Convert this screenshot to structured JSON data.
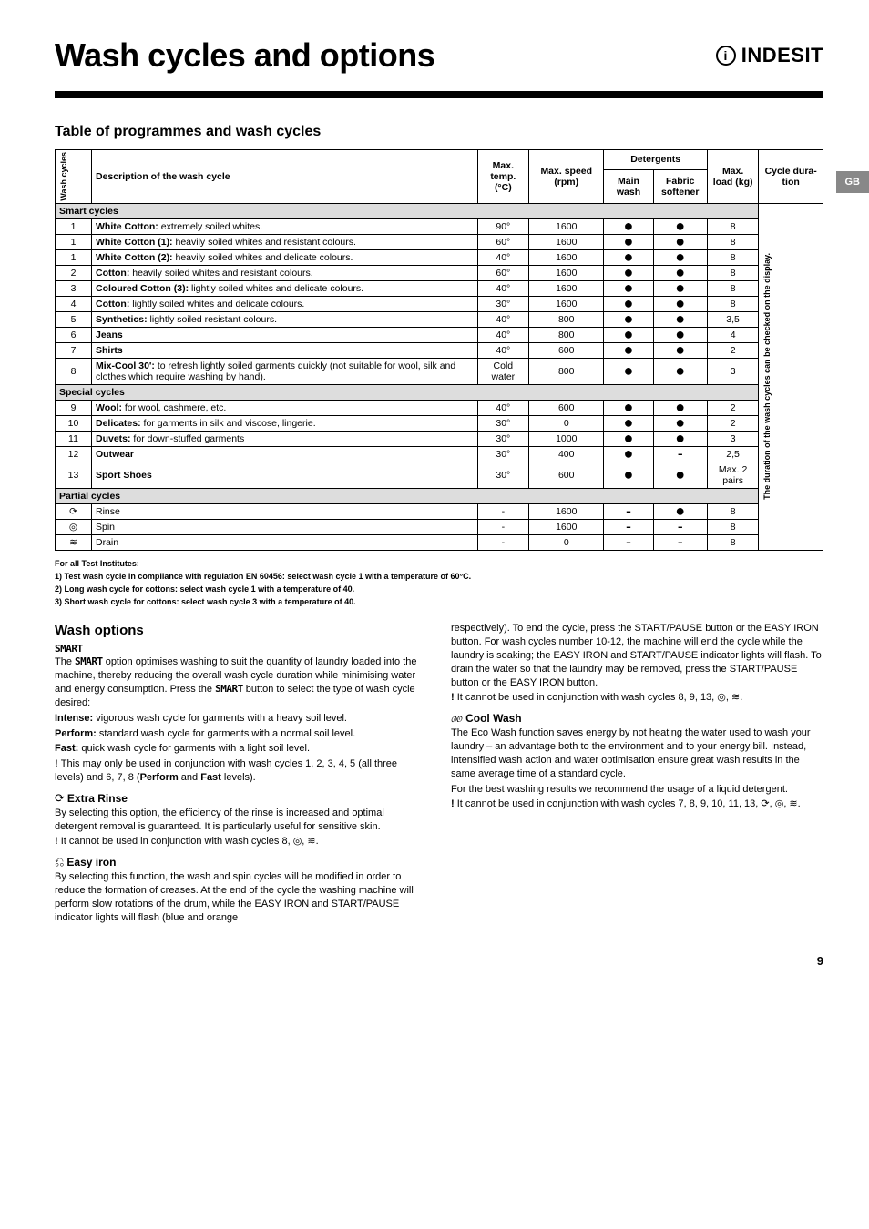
{
  "header": {
    "title": "Wash cycles and options",
    "logo": "INDESIT",
    "gb_tab": "GB"
  },
  "table": {
    "heading": "Table of programmes and wash cycles",
    "cols": {
      "cycle": "Wash cycles",
      "desc": "Description of the wash cycle",
      "temp": "Max. temp. (°C)",
      "speed": "Max. speed (rpm)",
      "det": "Detergents",
      "det_main": "Main wash",
      "det_soft": "Fabric softener",
      "load": "Max. load (kg)",
      "dura": "Cycle dura-tion",
      "dura_note": "The duration of the wash cycles can be checked on the display."
    },
    "sections": {
      "smart": "Smart cycles",
      "special": "Special cycles",
      "partial": "Partial cycles"
    },
    "rows": [
      {
        "n": "1",
        "d": "<b>White Cotton:</b> extremely soiled whites.",
        "t": "90°",
        "s": "1600",
        "m": "●",
        "f": "●",
        "l": "8"
      },
      {
        "n": "1",
        "d": "<b>White Cotton (1):</b> heavily soiled whites and resistant colours.",
        "t": "60°",
        "s": "1600",
        "m": "●",
        "f": "●",
        "l": "8"
      },
      {
        "n": "1",
        "d": "<b>White Cotton (2):</b> heavily soiled whites and delicate colours.",
        "t": "40°",
        "s": "1600",
        "m": "●",
        "f": "●",
        "l": "8"
      },
      {
        "n": "2",
        "d": "<b>Cotton:</b> heavily soiled whites and resistant colours.",
        "t": "60°",
        "s": "1600",
        "m": "●",
        "f": "●",
        "l": "8"
      },
      {
        "n": "3",
        "d": "<b>Coloured Cotton (3):</b> lightly soiled whites and delicate colours.",
        "t": "40°",
        "s": "1600",
        "m": "●",
        "f": "●",
        "l": "8"
      },
      {
        "n": "4",
        "d": "<b>Cotton:</b> lightly soiled whites and delicate colours.",
        "t": "30°",
        "s": "1600",
        "m": "●",
        "f": "●",
        "l": "8"
      },
      {
        "n": "5",
        "d": "<b>Synthetics:</b> lightly soiled resistant colours.",
        "t": "40°",
        "s": "800",
        "m": "●",
        "f": "●",
        "l": "3,5"
      },
      {
        "n": "6",
        "d": "<b>Jeans</b>",
        "t": "40°",
        "s": "800",
        "m": "●",
        "f": "●",
        "l": "4"
      },
      {
        "n": "7",
        "d": "<b>Shirts</b>",
        "t": "40°",
        "s": "600",
        "m": "●",
        "f": "●",
        "l": "2"
      },
      {
        "n": "8",
        "d": "<b>Mix-Cool 30':</b> to refresh lightly soiled garments quickly (not suitable for wool, silk and clothes which require washing by hand).",
        "t": "Cold water",
        "s": "800",
        "m": "●",
        "f": "●",
        "l": "3"
      }
    ],
    "rows_special": [
      {
        "n": "9",
        "d": "<b>Wool:</b> for wool, cashmere, etc.",
        "t": "40°",
        "s": "600",
        "m": "●",
        "f": "●",
        "l": "2"
      },
      {
        "n": "10",
        "d": "<b>Delicates:</b> for garments in silk and viscose, lingerie.",
        "t": "30°",
        "s": "0",
        "m": "●",
        "f": "●",
        "l": "2"
      },
      {
        "n": "11",
        "d": "<b>Duvets:</b> for down-stuffed garments",
        "t": "30°",
        "s": "1000",
        "m": "●",
        "f": "●",
        "l": "3"
      },
      {
        "n": "12",
        "d": "<b>Outwear</b>",
        "t": "30°",
        "s": "400",
        "m": "●",
        "f": "-",
        "l": "2,5"
      },
      {
        "n": "13",
        "d": "<b>Sport Shoes</b>",
        "t": "30°",
        "s": "600",
        "m": "●",
        "f": "●",
        "l": "Max. 2 pairs"
      }
    ],
    "rows_partial": [
      {
        "n": "⟳",
        "d": "Rinse",
        "t": "-",
        "s": "1600",
        "m": "-",
        "f": "●",
        "l": "8"
      },
      {
        "n": "◎",
        "d": "Spin",
        "t": "-",
        "s": "1600",
        "m": "-",
        "f": "-",
        "l": "8"
      },
      {
        "n": "≋",
        "d": "Drain",
        "t": "-",
        "s": "0",
        "m": "-",
        "f": "-",
        "l": "8"
      }
    ]
  },
  "footnotes": {
    "l1": "For all Test Institutes:",
    "l2": "1) Test wash cycle in compliance with regulation EN 60456: select wash cycle 1 with a temperature of 60°C.",
    "l3": "2) Long wash cycle for cottons: select wash cycle 1 with a temperature of 40.",
    "l4": "3) Short wash cycle for cottons: select wash cycle 3 with a temperature of 40."
  },
  "left": {
    "heading": "Wash options",
    "smart_label": "SMART",
    "smart_p1": "The ",
    "smart_p2": " option optimises washing to suit the quantity of laundry loaded into the machine, thereby reducing the overall wash cycle duration while minimising water and energy consumption. Press the ",
    "smart_p3": " button to select the type of wash cycle desired:",
    "intense_l": "Intense:",
    "intense_t": " vigorous wash cycle for garments with a heavy soil level.",
    "perform_l": "Perform:",
    "perform_t": " standard wash cycle for garments with a normal soil level.",
    "fast_l": "Fast:",
    "fast_t": " quick wash cycle for garments with a light soil level.",
    "fast_note": "This may only be used in conjunction with wash cycles 1, 2, 3, 4, 5 (all three levels) and 6, 7, 8 (Perform and Fast levels).",
    "extra_h": "Extra Rinse",
    "extra_p": "By selecting this option, the efficiency of the rinse is increased and optimal detergent removal is guaranteed. It is particularly useful for sensitive skin.",
    "extra_note": "It cannot be used in conjunction with wash cycles 8, ◎, ≋.",
    "easy_h": "Easy iron",
    "easy_p": "By selecting this function, the wash and spin cycles will be modified in order to reduce the formation of creases. At the end of the cycle the washing machine will perform slow rotations of the drum, while the EASY IRON and START/PAUSE indicator lights will flash (blue and orange"
  },
  "right": {
    "cont": "respectively). To end the cycle, press the START/PAUSE button or the EASY IRON button. For wash cycles number 10-12, the machine will end the cycle while the laundry is soaking; the EASY IRON and START/PAUSE indicator lights will flash. To drain the water so that the laundry may be removed, press the START/PAUSE button or the EASY IRON button.",
    "cont_note": "It cannot be used in conjunction with wash cycles 8, 9, 13, ◎, ≋.",
    "cool_h": "Cool Wash",
    "cool_p1": "The Eco Wash function saves energy by not heating the water used to wash your laundry – an advantage both to the environment and to your energy bill. Instead, intensified wash action and water optimisation ensure great wash results in the same average time of a standard cycle.",
    "cool_p2": "For the best washing results we recommend the usage of a liquid detergent.",
    "cool_note": "It cannot be used in conjunction with wash cycles 7, 8, 9, 10, 11, 13, ⟳, ◎, ≋."
  },
  "pagenum": "9"
}
